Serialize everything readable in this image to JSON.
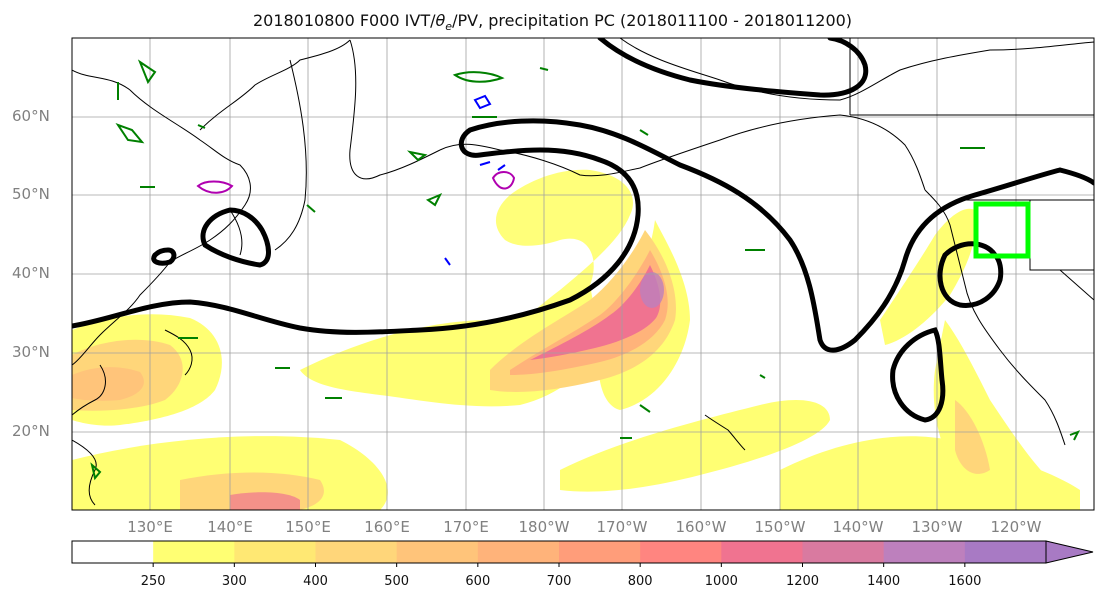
{
  "title": {
    "prefix": "2018010800 F000 IVT/",
    "theta": "θ",
    "theta_sub": "e",
    "suffix": "/PV, precipitation PC (2018011100 - 2018011200)"
  },
  "axes": {
    "lat_labels": [
      "60°N",
      "50°N",
      "40°N",
      "30°N",
      "20°N"
    ],
    "lon_labels": [
      "130°E",
      "140°E",
      "150°E",
      "160°E",
      "170°E",
      "180°W",
      "170°W",
      "160°W",
      "150°W",
      "140°W",
      "130°W",
      "120°W"
    ]
  },
  "colorbar": {
    "levels": [
      "250",
      "300",
      "400",
      "500",
      "600",
      "700",
      "800",
      "1000",
      "1200",
      "1400",
      "1600"
    ],
    "colors": [
      "#ffffff",
      "#ffff73",
      "#ffe873",
      "#ffd67a",
      "#ffc47a",
      "#ffb37a",
      "#ff9d7a",
      "#ff8580",
      "#f07390",
      "#d97aa0",
      "#bd80bd",
      "#a87ac4"
    ]
  },
  "colors": {
    "theta_contour": "#000000",
    "pv_contour": "#008000",
    "blue_contour": "#0000ff",
    "magenta_contour": "#b000b0",
    "target_box": "#00ff00"
  }
}
